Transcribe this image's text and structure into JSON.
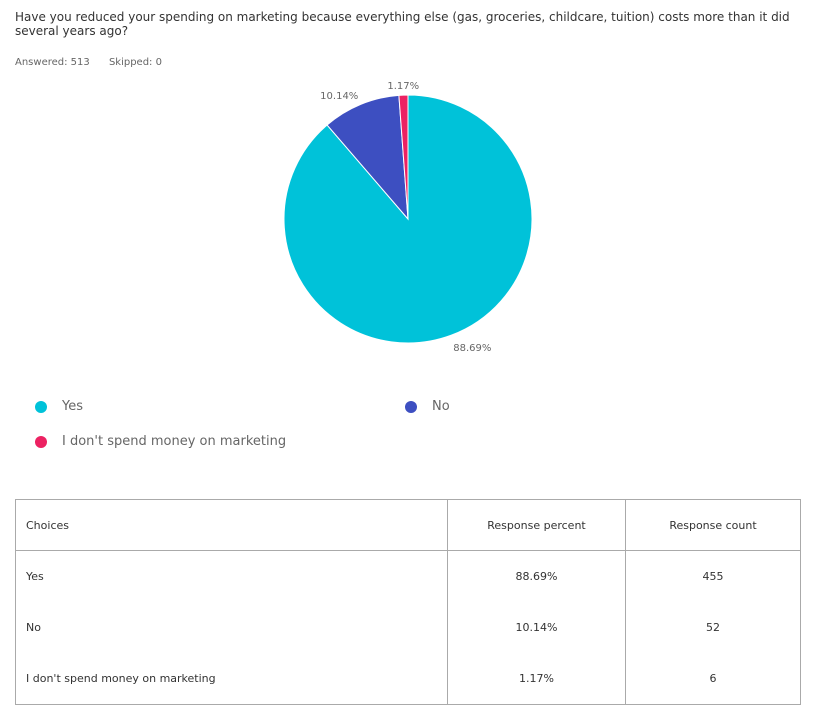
{
  "question": "Have you reduced your spending on marketing because everything else (gas, groceries, childcare, tuition) costs more than it did several years ago?",
  "stats": {
    "answered": "Answered: 513",
    "skipped": "Skipped: 0"
  },
  "chart_data": {
    "type": "pie",
    "slices": [
      {
        "label": "Yes",
        "value": 88.69,
        "display": "88.69%",
        "color": "#00c2d9"
      },
      {
        "label": "No",
        "value": 10.14,
        "display": "10.14%",
        "color": "#3d4fc1"
      },
      {
        "label": "I don't spend money on marketing",
        "value": 1.17,
        "display": "1.17%",
        "color": "#ec2262"
      }
    ],
    "legend_placement": "bottom"
  },
  "table": {
    "headers": [
      "Choices",
      "Response percent",
      "Response count"
    ],
    "rows": [
      [
        "Yes",
        "88.69%",
        "455"
      ],
      [
        "No",
        "10.14%",
        "52"
      ],
      [
        "I don't spend money on marketing",
        "1.17%",
        "6"
      ]
    ]
  }
}
